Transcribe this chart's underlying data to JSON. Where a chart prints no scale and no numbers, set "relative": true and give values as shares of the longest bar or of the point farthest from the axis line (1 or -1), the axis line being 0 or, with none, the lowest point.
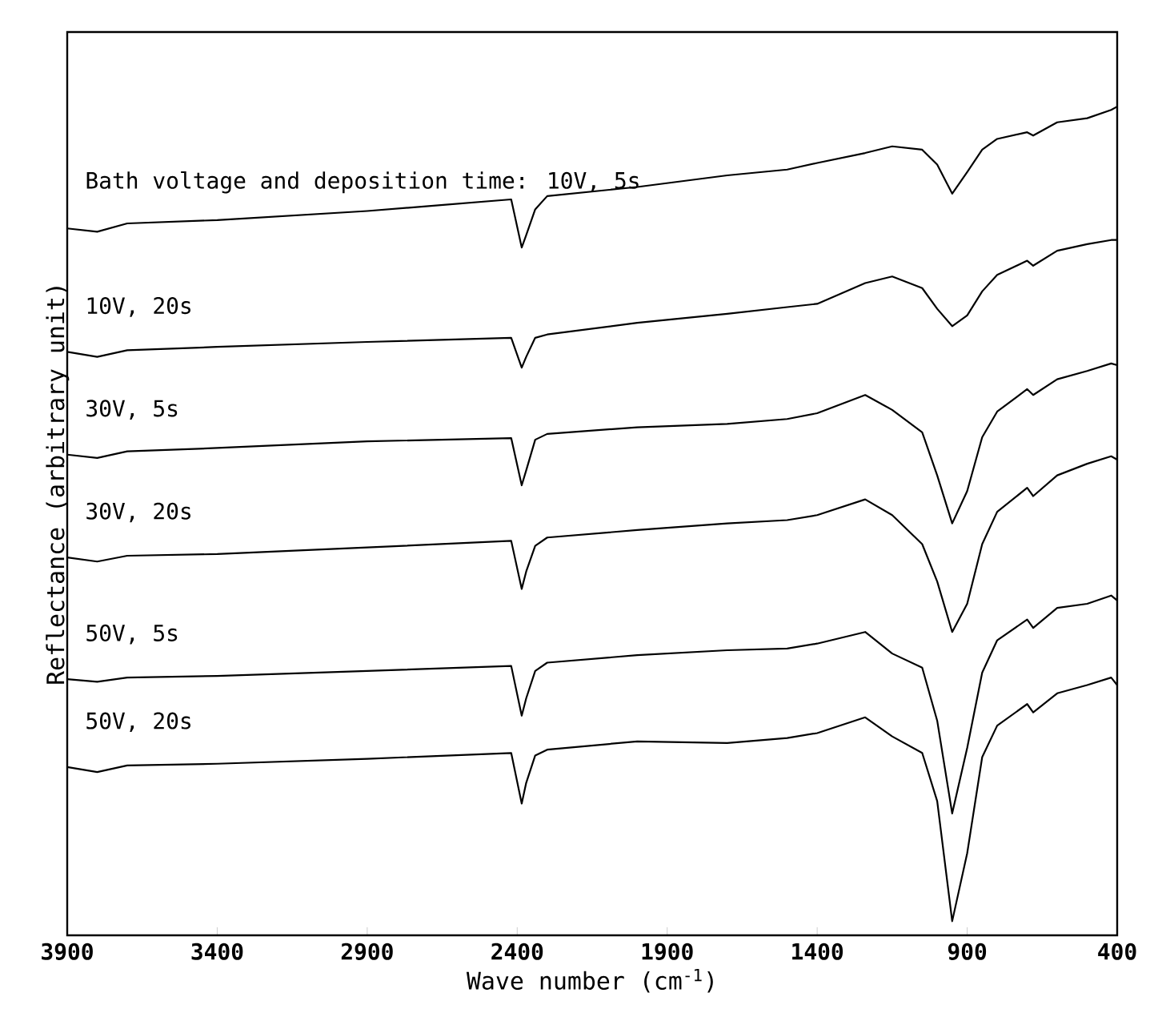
{
  "chart_data": {
    "type": "line",
    "relative": true,
    "xlabel": "Wave number (cm$^{-1}$)",
    "ylabel": "Reflectance (arbitrary unit)",
    "xlim": [
      3900,
      400
    ],
    "xticks": [
      3900,
      3400,
      2900,
      2400,
      1900,
      1400,
      900,
      400
    ],
    "x": [
      3900,
      3800,
      3700,
      3400,
      2900,
      2420,
      2385,
      2370,
      2340,
      2300,
      2000,
      1700,
      1500,
      1400,
      1240,
      1150,
      1050,
      1000,
      950,
      900,
      850,
      800,
      700,
      680,
      600,
      500,
      420,
      400
    ],
    "series": [
      {
        "name": "Bath voltage and deposition time: 10V, 5s",
        "color": "#000000",
        "values": [
          0.853,
          0.849,
          0.859,
          0.863,
          0.874,
          0.888,
          0.83,
          0.845,
          0.876,
          0.892,
          0.903,
          0.917,
          0.924,
          0.932,
          0.944,
          0.952,
          0.948,
          0.93,
          0.895,
          0.921,
          0.948,
          0.961,
          0.969,
          0.965,
          0.981,
          0.986,
          0.996,
          1
        ]
      },
      {
        "name": "10V, 20s",
        "color": "#000000",
        "values": [
          0.704,
          0.698,
          0.706,
          0.71,
          0.716,
          0.721,
          0.685,
          0.698,
          0.721,
          0.725,
          0.739,
          0.75,
          0.758,
          0.762,
          0.787,
          0.795,
          0.781,
          0.756,
          0.735,
          0.748,
          0.777,
          0.797,
          0.814,
          0.808,
          0.826,
          0.834,
          0.839,
          0.839
        ]
      },
      {
        "name": "30V, 5s",
        "color": "#000000",
        "values": [
          0.58,
          0.576,
          0.584,
          0.588,
          0.596,
          0.6,
          0.543,
          0.561,
          0.598,
          0.605,
          0.613,
          0.617,
          0.623,
          0.63,
          0.652,
          0.634,
          0.607,
          0.555,
          0.497,
          0.536,
          0.601,
          0.632,
          0.659,
          0.652,
          0.671,
          0.681,
          0.69,
          0.688
        ]
      },
      {
        "name": "30V, 20s",
        "color": "#000000",
        "values": [
          0.456,
          0.451,
          0.458,
          0.46,
          0.468,
          0.476,
          0.418,
          0.439,
          0.47,
          0.48,
          0.489,
          0.497,
          0.501,
          0.507,
          0.526,
          0.507,
          0.472,
          0.427,
          0.366,
          0.4,
          0.472,
          0.511,
          0.54,
          0.53,
          0.555,
          0.569,
          0.578,
          0.574
        ]
      },
      {
        "name": "50V, 5s",
        "color": "#000000",
        "values": [
          0.309,
          0.306,
          0.311,
          0.313,
          0.319,
          0.325,
          0.265,
          0.286,
          0.319,
          0.329,
          0.338,
          0.344,
          0.346,
          0.352,
          0.366,
          0.34,
          0.323,
          0.259,
          0.147,
          0.226,
          0.317,
          0.356,
          0.381,
          0.371,
          0.395,
          0.4,
          0.41,
          0.404
        ]
      },
      {
        "name": "50V, 20s",
        "color": "#000000",
        "values": [
          0.203,
          0.197,
          0.205,
          0.207,
          0.213,
          0.22,
          0.159,
          0.184,
          0.217,
          0.224,
          0.234,
          0.232,
          0.238,
          0.244,
          0.263,
          0.24,
          0.22,
          0.162,
          0.017,
          0.099,
          0.215,
          0.253,
          0.279,
          0.269,
          0.292,
          0.302,
          0.311,
          0.302
        ]
      }
    ]
  }
}
